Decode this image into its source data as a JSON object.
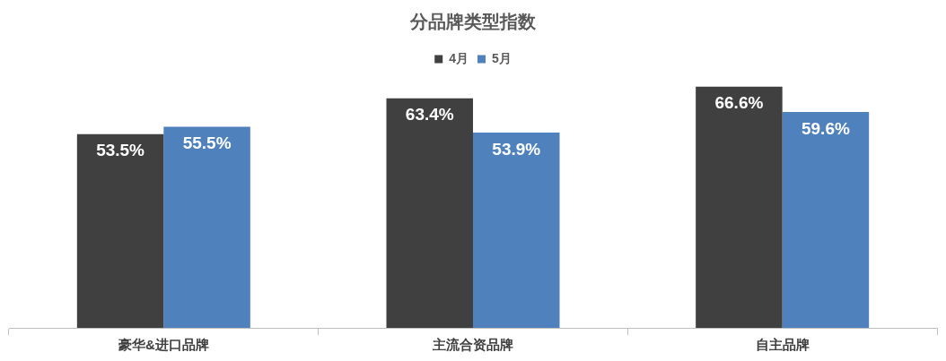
{
  "chart_data": {
    "type": "bar",
    "title": "分品牌类型指数",
    "categories": [
      "豪华&进口品牌",
      "主流合资品牌",
      "自主品牌"
    ],
    "series": [
      {
        "name": "4月",
        "color": "#404040",
        "values": [
          53.5,
          63.4,
          66.6
        ],
        "value_labels": [
          "53.5%",
          "63.4%",
          "66.6%"
        ]
      },
      {
        "name": "5月",
        "color": "#4f81bd",
        "values": [
          55.5,
          53.9,
          59.6
        ],
        "value_labels": [
          "55.5%",
          "53.9%",
          "59.6%"
        ]
      }
    ],
    "legend": "top"
  }
}
